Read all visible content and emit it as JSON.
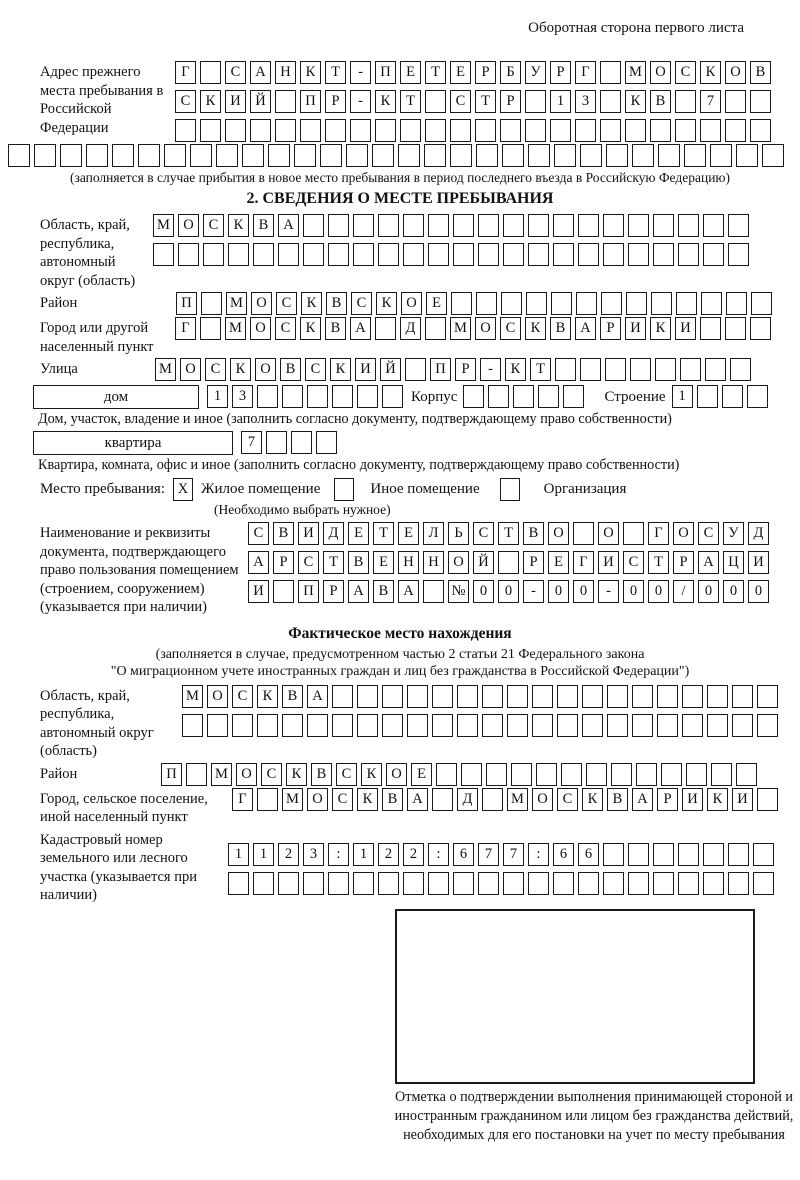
{
  "page": {
    "header_note": "Оборотная сторона первого листа"
  },
  "prev_address": {
    "label": "Адрес прежнего места пребывания в Российской Федерации",
    "rows": [
      "Г САНКТ-ПЕТЕРБУРГ МОСКОВ",
      "СКИЙ ПР-КТ СТР 13 КВ 7",
      ""
    ],
    "extra_row": "",
    "note": "(заполняется в случае прибытия в новое место пребывания в период последнего въезда в Российскую Федерацию)"
  },
  "section2": {
    "title": "2. СВЕДЕНИЯ О МЕСТЕ ПРЕБЫВАНИЯ",
    "oblast": {
      "label": "Область, край, республика, автономный округ (область)",
      "rows": [
        "МОСКВА",
        ""
      ]
    },
    "raion": {
      "label": "Район",
      "row": "П МОСКВСКОЕ"
    },
    "gorod": {
      "label": "Город или другой населенный пункт",
      "row": "Г МОСКВА Д МОСКВАРИКИ"
    },
    "ulitsa": {
      "label": "Улица",
      "row": "МОСКОВСКИЙ ПР-КТ"
    },
    "dom": {
      "label": "дом",
      "cells": "13",
      "korpus_label": "Корпус",
      "korpus_cells": "",
      "stroenie_label": "Строение",
      "stroenie_cells": "1",
      "caption": "Дом, участок, владение и иное (заполнить согласно документу, подтверждающему право собственности)"
    },
    "kvartira": {
      "label": "квартира",
      "cells": "7",
      "caption": "Квартира, комната, офис и иное (заполнить согласно документу, подтверждающему право собственности)"
    },
    "mesto": {
      "label": "Место пребывания:",
      "zhiloe_mark": "X",
      "zhiloe_label": "Жилое помещение",
      "inoe_mark": "",
      "inoe_label": "Иное помещение",
      "org_mark": "",
      "org_label": "Организация",
      "note": "(Необходимо выбрать нужное)"
    },
    "document": {
      "label": "Наименование и реквизиты документа, подтверждающего право пользования помещением (строением, сооружением) (указывается при наличии)",
      "rows": [
        "СВИДЕТЕЛЬСТВО О ГОСУД",
        "АРСТВЕННОЙ РЕГИСТРАЦИ",
        "И ПРАВА №00-00-00/000"
      ]
    }
  },
  "factual": {
    "title": "Фактическое место нахождения",
    "note1": "(заполняется в случае, предусмотренном частью 2 статьи 21 Федерального закона",
    "note2": "\"О миграционном учете иностранных граждан и лиц без гражданства в Российской Федерации\")",
    "oblast": {
      "label": "Область, край, республика, автономный округ (область)",
      "rows": [
        "МОСКВА",
        ""
      ]
    },
    "raion": {
      "label": "Район",
      "row": "П МОСКВСКОЕ"
    },
    "gorod": {
      "label": "Город, сельское поселение, иной населенный пункт",
      "row": "Г МОСКВА Д МОСКВАРИКИ"
    },
    "kadastr": {
      "label": "Кадастровый номер земельного или лесного участка (указывается при наличии)",
      "rows": [
        "1123:122:677:66",
        ""
      ]
    },
    "stamp_caption": "Отметка о подтверждении выполнения принимающей стороной и иностранным гражданином или лицом без гражданства действий, необходимых для его постановки на учет по месту пребывания"
  }
}
